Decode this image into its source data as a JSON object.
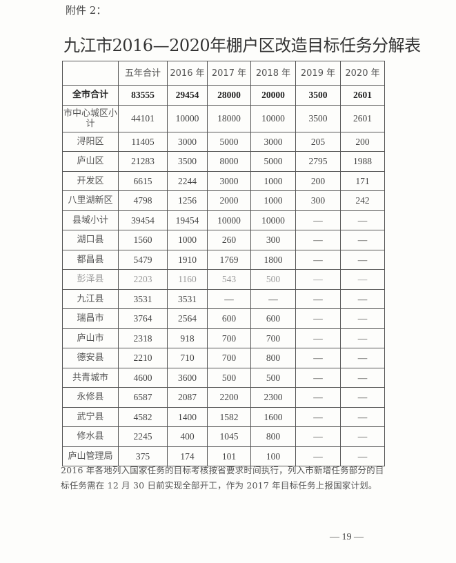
{
  "attachment_label": "附件 2：",
  "title": "九江市2016—2020年棚户区改造目标任务分解表",
  "table": {
    "headers": [
      "",
      "五年合计",
      "2016 年",
      "2017 年",
      "2018 年",
      "2019 年",
      "2020 年"
    ],
    "rows": [
      {
        "label": "全市合计",
        "values": [
          "83555",
          "29454",
          "28000",
          "20000",
          "3500",
          "2601"
        ],
        "style": "bold"
      },
      {
        "label": "市中心城区小计",
        "values": [
          "44101",
          "10000",
          "18000",
          "10000",
          "3500",
          "2601"
        ],
        "style": "tall"
      },
      {
        "label": "浔阳区",
        "values": [
          "11405",
          "3000",
          "5000",
          "3000",
          "205",
          "200"
        ]
      },
      {
        "label": "庐山区",
        "values": [
          "21283",
          "3500",
          "8000",
          "5000",
          "2795",
          "1988"
        ]
      },
      {
        "label": "开发区",
        "values": [
          "6615",
          "2244",
          "3000",
          "1000",
          "200",
          "171"
        ]
      },
      {
        "label": "八里湖新区",
        "values": [
          "4798",
          "1256",
          "2000",
          "1000",
          "300",
          "242"
        ]
      },
      {
        "label": "县域小计",
        "values": [
          "39454",
          "19454",
          "10000",
          "10000",
          "—",
          "—"
        ]
      },
      {
        "label": "湖口县",
        "values": [
          "1560",
          "1000",
          "260",
          "300",
          "—",
          "—"
        ]
      },
      {
        "label": "都昌县",
        "values": [
          "5479",
          "1910",
          "1769",
          "1800",
          "—",
          "—"
        ]
      },
      {
        "label": "彭泽县",
        "values": [
          "2203",
          "1160",
          "543",
          "500",
          "—",
          "—"
        ],
        "style": "faint"
      },
      {
        "label": "九江县",
        "values": [
          "3531",
          "3531",
          "—",
          "—",
          "—",
          "—"
        ]
      },
      {
        "label": "瑞昌市",
        "values": [
          "3764",
          "2564",
          "600",
          "600",
          "—",
          "—"
        ]
      },
      {
        "label": "庐山市",
        "values": [
          "2318",
          "918",
          "700",
          "700",
          "—",
          "—"
        ]
      },
      {
        "label": "德安县",
        "values": [
          "2210",
          "710",
          "700",
          "800",
          "—",
          "—"
        ]
      },
      {
        "label": "共青城市",
        "values": [
          "4600",
          "3600",
          "500",
          "500",
          "—",
          "—"
        ]
      },
      {
        "label": "永修县",
        "values": [
          "6587",
          "2087",
          "2200",
          "2300",
          "—",
          "—"
        ]
      },
      {
        "label": "武宁县",
        "values": [
          "4582",
          "1400",
          "1582",
          "1600",
          "—",
          "—"
        ]
      },
      {
        "label": "修水县",
        "values": [
          "2245",
          "400",
          "1045",
          "800",
          "—",
          "—"
        ]
      },
      {
        "label": "庐山管理局",
        "values": [
          "375",
          "174",
          "101",
          "100",
          "—",
          "—"
        ]
      }
    ]
  },
  "footnote": "2016 年各地列入国家任务的目标考核按省要求时间执行，列入市新增任务部分的目标任务需在 12 月 30 日前实现全部开工，作为 2017 年目标任务上报国家计划。",
  "page_number": "— 19 —"
}
